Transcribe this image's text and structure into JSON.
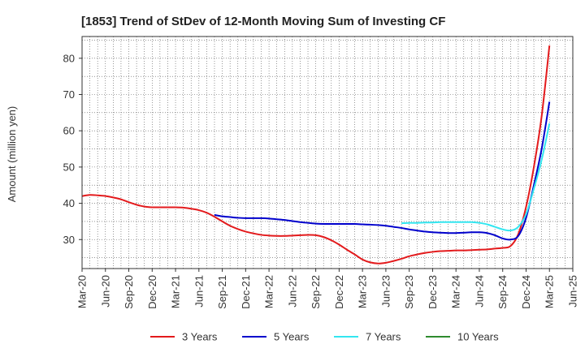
{
  "chart_data": {
    "type": "line",
    "title": "[1853]  Trend of StDev of 12-Month Moving Sum of Investing CF",
    "ylabel": "Amount (million yen)",
    "xlabel": "",
    "x_start": "Mar-20",
    "x_end": "Jun-25",
    "ylim": [
      22,
      86
    ],
    "yticks": [
      30,
      40,
      50,
      60,
      70,
      80
    ],
    "grid": true,
    "legend_position": "bottom",
    "categories": [
      "Mar-20",
      "Jun-20",
      "Sep-20",
      "Dec-20",
      "Mar-21",
      "Jun-21",
      "Sep-21",
      "Dec-21",
      "Mar-22",
      "Jun-22",
      "Sep-22",
      "Dec-22",
      "Mar-23",
      "Jun-23",
      "Sep-23",
      "Dec-23",
      "Mar-24",
      "Jun-24",
      "Sep-24",
      "Dec-24",
      "Mar-25",
      "Jun-25"
    ],
    "series": [
      {
        "name": "3 Years",
        "color": "#e31a1c",
        "points": [
          [
            "Mar-20",
            42.0
          ],
          [
            "Apr-20",
            42.3
          ],
          [
            "May-20",
            42.2
          ],
          [
            "Jun-20",
            42.0
          ],
          [
            "Jul-20",
            41.6
          ],
          [
            "Aug-20",
            41.1
          ],
          [
            "Sep-20",
            40.3
          ],
          [
            "Oct-20",
            39.6
          ],
          [
            "Nov-20",
            39.1
          ],
          [
            "Dec-20",
            38.9
          ],
          [
            "Jan-21",
            38.9
          ],
          [
            "Feb-21",
            38.9
          ],
          [
            "Mar-21",
            38.9
          ],
          [
            "Apr-21",
            38.8
          ],
          [
            "May-21",
            38.5
          ],
          [
            "Jun-21",
            38.1
          ],
          [
            "Jul-21",
            37.4
          ],
          [
            "Aug-21",
            36.3
          ],
          [
            "Sep-21",
            35.0
          ],
          [
            "Oct-21",
            33.8
          ],
          [
            "Nov-21",
            32.9
          ],
          [
            "Dec-21",
            32.2
          ],
          [
            "Jan-22",
            31.7
          ],
          [
            "Feb-22",
            31.3
          ],
          [
            "Mar-22",
            31.1
          ],
          [
            "Apr-22",
            31.0
          ],
          [
            "May-22",
            31.0
          ],
          [
            "Jun-22",
            31.1
          ],
          [
            "Jul-22",
            31.2
          ],
          [
            "Aug-22",
            31.3
          ],
          [
            "Sep-22",
            31.2
          ],
          [
            "Oct-22",
            30.7
          ],
          [
            "Nov-22",
            29.8
          ],
          [
            "Dec-22",
            28.6
          ],
          [
            "Jan-23",
            27.2
          ],
          [
            "Feb-23",
            25.9
          ],
          [
            "Mar-23",
            24.5
          ],
          [
            "Apr-23",
            23.7
          ],
          [
            "May-23",
            23.4
          ],
          [
            "Jun-23",
            23.6
          ],
          [
            "Jul-23",
            24.1
          ],
          [
            "Aug-23",
            24.7
          ],
          [
            "Sep-23",
            25.4
          ],
          [
            "Oct-23",
            25.9
          ],
          [
            "Nov-23",
            26.3
          ],
          [
            "Dec-23",
            26.6
          ],
          [
            "Jan-24",
            26.8
          ],
          [
            "Feb-24",
            26.9
          ],
          [
            "Mar-24",
            27.0
          ],
          [
            "Apr-24",
            27.0
          ],
          [
            "May-24",
            27.1
          ],
          [
            "Jun-24",
            27.2
          ],
          [
            "Jul-24",
            27.3
          ],
          [
            "Aug-24",
            27.5
          ],
          [
            "Sep-24",
            27.7
          ],
          [
            "Oct-24",
            28.2
          ],
          [
            "Nov-24",
            31.5
          ],
          [
            "Dec-24",
            39.0
          ],
          [
            "Jan-25",
            50.0
          ],
          [
            "Feb-25",
            64.0
          ],
          [
            "Mar-25",
            83.5
          ]
        ]
      },
      {
        "name": "5 Years",
        "color": "#0000cc",
        "points": [
          [
            "Aug-21",
            36.8
          ],
          [
            "Sep-21",
            36.4
          ],
          [
            "Oct-21",
            36.2
          ],
          [
            "Nov-21",
            36.0
          ],
          [
            "Dec-21",
            35.9
          ],
          [
            "Jan-22",
            35.9
          ],
          [
            "Feb-22",
            35.9
          ],
          [
            "Mar-22",
            35.8
          ],
          [
            "Apr-22",
            35.6
          ],
          [
            "May-22",
            35.4
          ],
          [
            "Jun-22",
            35.1
          ],
          [
            "Jul-22",
            34.8
          ],
          [
            "Aug-22",
            34.6
          ],
          [
            "Sep-22",
            34.4
          ],
          [
            "Oct-22",
            34.3
          ],
          [
            "Nov-22",
            34.3
          ],
          [
            "Dec-22",
            34.3
          ],
          [
            "Jan-23",
            34.3
          ],
          [
            "Feb-23",
            34.3
          ],
          [
            "Mar-23",
            34.2
          ],
          [
            "Apr-23",
            34.1
          ],
          [
            "May-23",
            34.0
          ],
          [
            "Jun-23",
            33.8
          ],
          [
            "Jul-23",
            33.5
          ],
          [
            "Aug-23",
            33.2
          ],
          [
            "Sep-23",
            32.8
          ],
          [
            "Oct-23",
            32.5
          ],
          [
            "Nov-23",
            32.2
          ],
          [
            "Dec-23",
            32.0
          ],
          [
            "Jan-24",
            31.9
          ],
          [
            "Feb-24",
            31.8
          ],
          [
            "Mar-24",
            31.8
          ],
          [
            "Apr-24",
            31.9
          ],
          [
            "May-24",
            32.0
          ],
          [
            "Jun-24",
            32.0
          ],
          [
            "Jul-24",
            31.8
          ],
          [
            "Aug-24",
            31.2
          ],
          [
            "Sep-24",
            30.3
          ],
          [
            "Oct-24",
            30.0
          ],
          [
            "Nov-24",
            31.0
          ],
          [
            "Dec-24",
            36.0
          ],
          [
            "Jan-25",
            45.0
          ],
          [
            "Feb-25",
            55.0
          ],
          [
            "Mar-25",
            68.0
          ]
        ]
      },
      {
        "name": "7 Years",
        "color": "#33e6f0",
        "points": [
          [
            "Aug-23",
            34.5
          ],
          [
            "Sep-23",
            34.6
          ],
          [
            "Oct-23",
            34.6
          ],
          [
            "Nov-23",
            34.7
          ],
          [
            "Dec-23",
            34.7
          ],
          [
            "Jan-24",
            34.8
          ],
          [
            "Feb-24",
            34.8
          ],
          [
            "Mar-24",
            34.8
          ],
          [
            "Apr-24",
            34.8
          ],
          [
            "May-24",
            34.8
          ],
          [
            "Jun-24",
            34.6
          ],
          [
            "Jul-24",
            34.2
          ],
          [
            "Aug-24",
            33.5
          ],
          [
            "Sep-24",
            32.8
          ],
          [
            "Oct-24",
            32.5
          ],
          [
            "Nov-24",
            33.5
          ],
          [
            "Dec-24",
            37.0
          ],
          [
            "Jan-25",
            44.0
          ],
          [
            "Feb-25",
            52.0
          ],
          [
            "Mar-25",
            62.0
          ]
        ]
      },
      {
        "name": "10 Years",
        "color": "#2e8b2e",
        "points": []
      }
    ]
  }
}
